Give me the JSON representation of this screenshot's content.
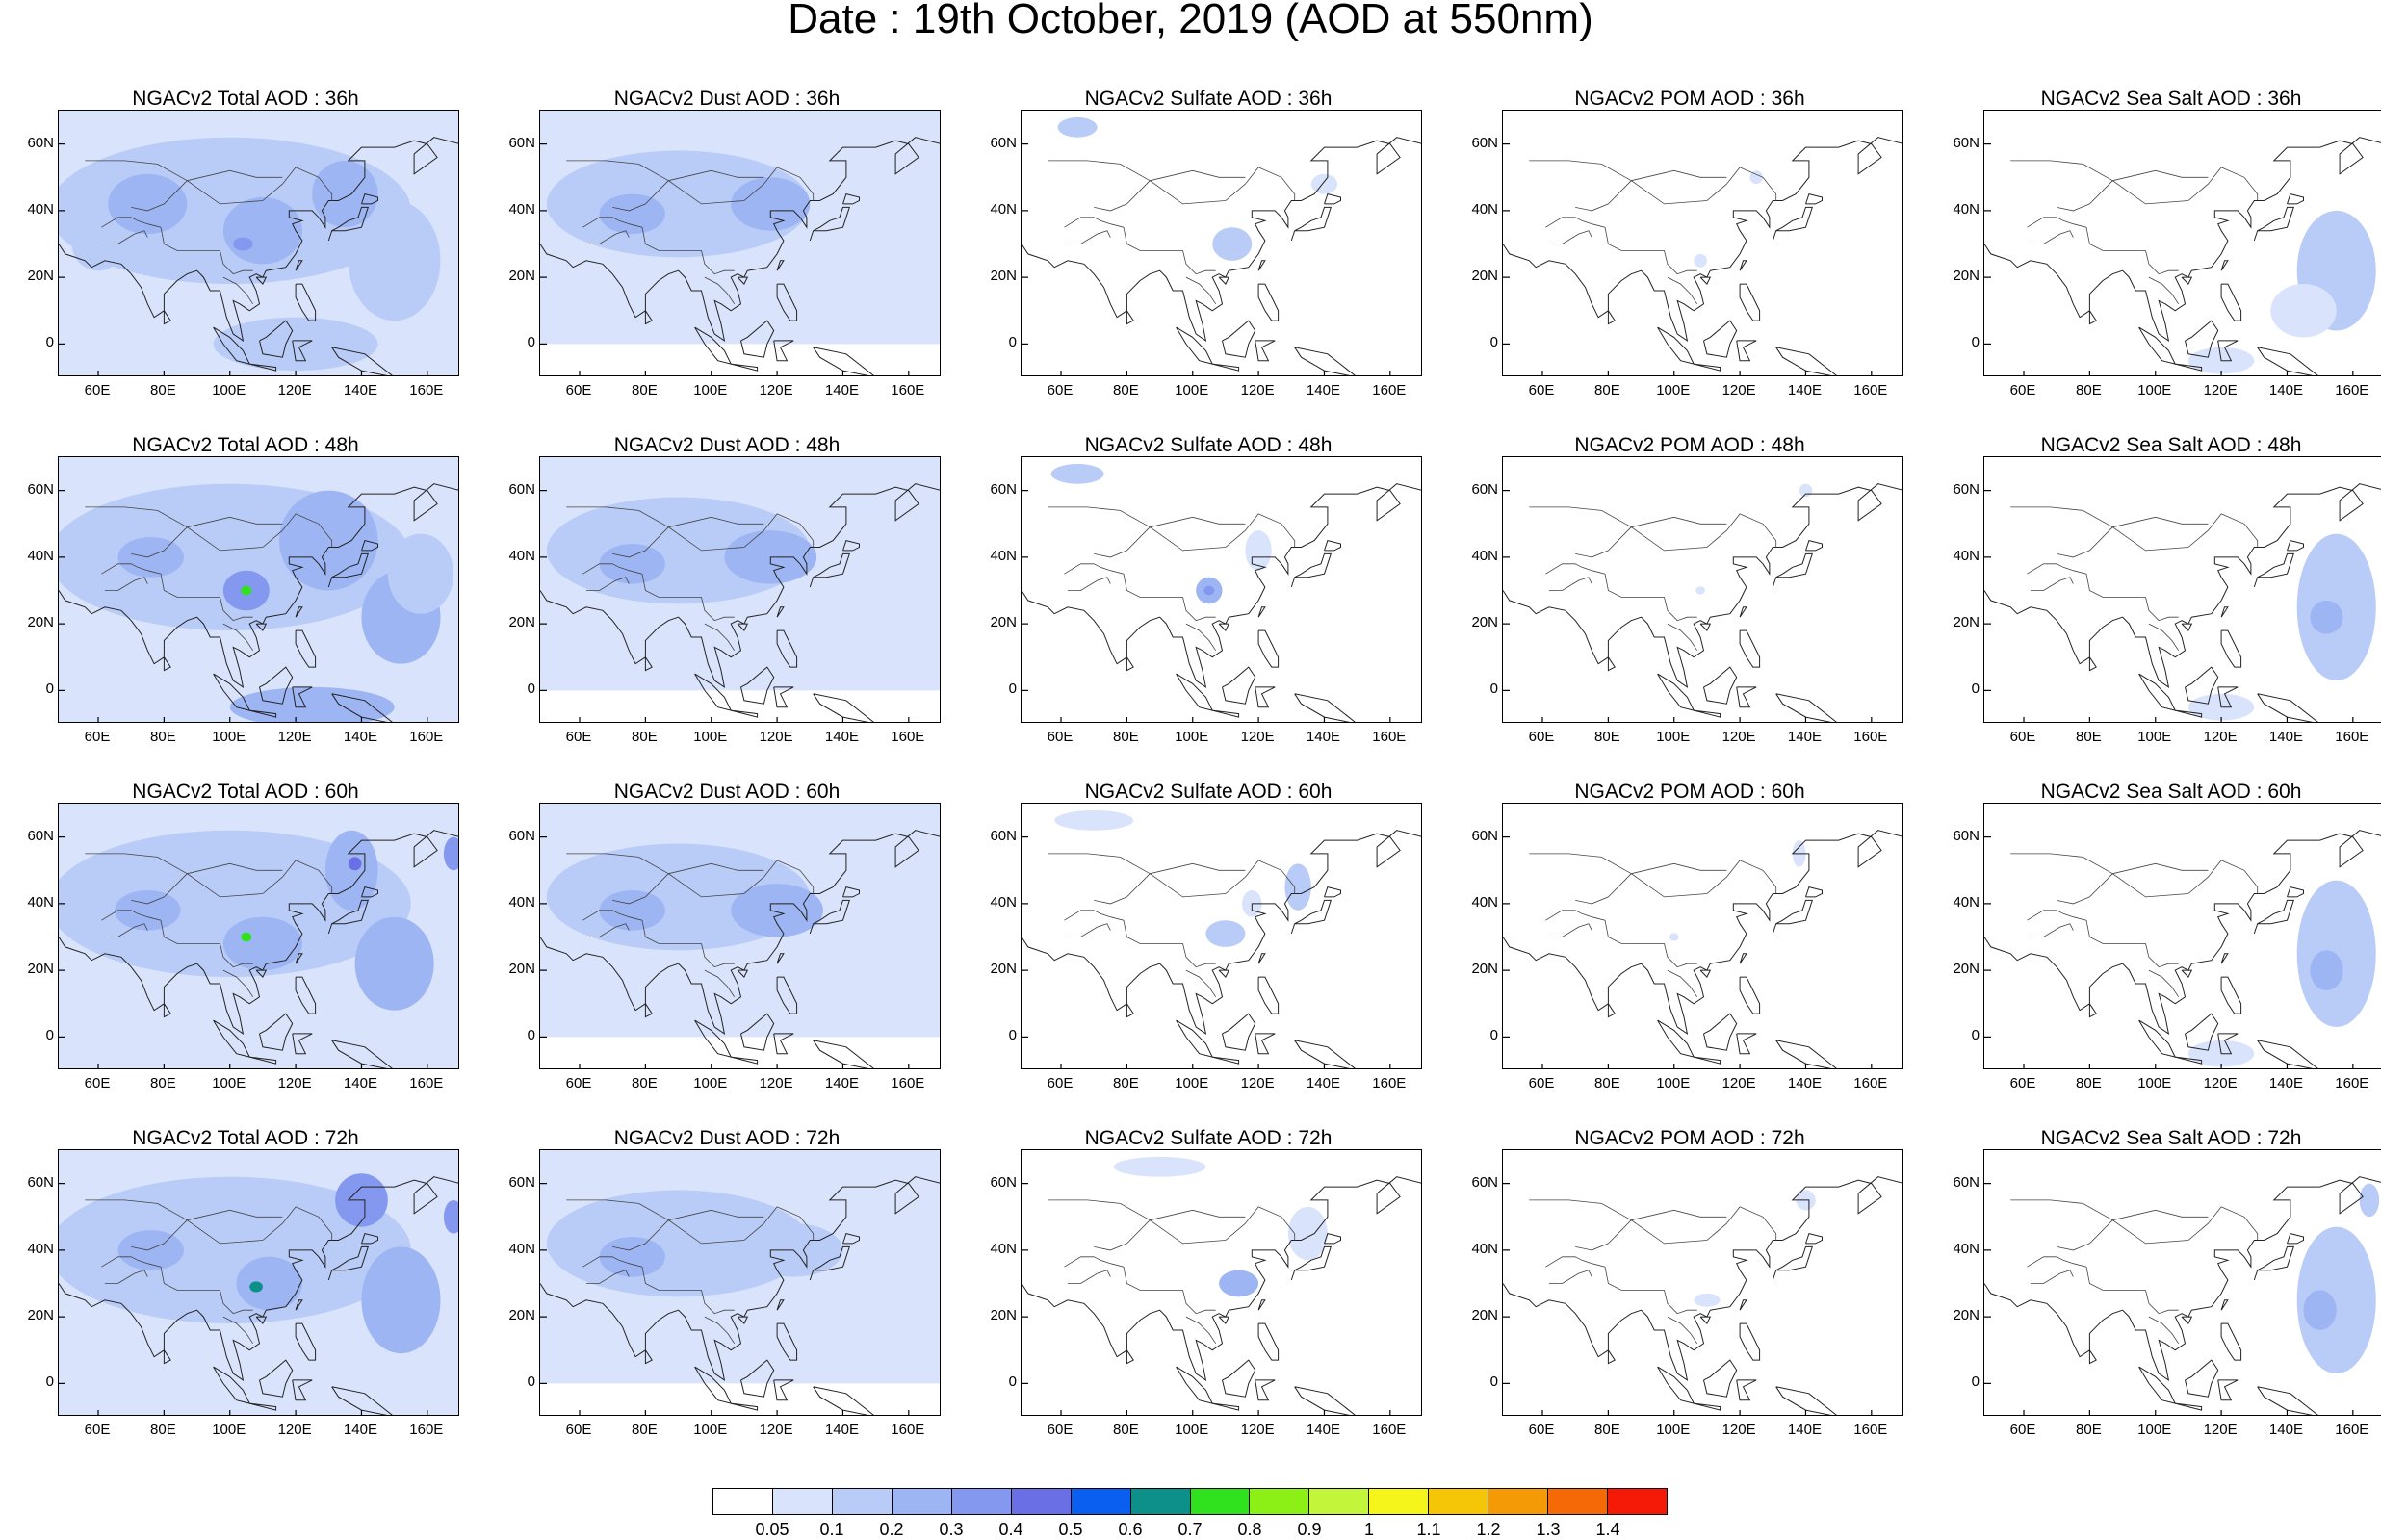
{
  "title": "Date : 19th October, 2019 (AOD at 550nm)",
  "lat_labels": [
    "60N",
    "40N",
    "20N",
    "0"
  ],
  "lon_labels": [
    "60E",
    "80E",
    "100E",
    "120E",
    "140E",
    "160E"
  ],
  "panels": [
    {
      "title": "NGACv2 Total AOD : 36h",
      "species": "total",
      "forecast_hour": 36
    },
    {
      "title": "NGACv2 Dust AOD : 36h",
      "species": "dust",
      "forecast_hour": 36
    },
    {
      "title": "NGACv2 Sulfate AOD : 36h",
      "species": "sulfate",
      "forecast_hour": 36
    },
    {
      "title": "NGACv2 POM AOD : 36h",
      "species": "pom",
      "forecast_hour": 36
    },
    {
      "title": "NGACv2 Sea Salt AOD : 36h",
      "species": "seasalt",
      "forecast_hour": 36
    },
    {
      "title": "NGACv2 Total AOD : 48h",
      "species": "total",
      "forecast_hour": 48
    },
    {
      "title": "NGACv2 Dust AOD : 48h",
      "species": "dust",
      "forecast_hour": 48
    },
    {
      "title": "NGACv2 Sulfate AOD : 48h",
      "species": "sulfate",
      "forecast_hour": 48
    },
    {
      "title": "NGACv2 POM AOD : 48h",
      "species": "pom",
      "forecast_hour": 48
    },
    {
      "title": "NGACv2 Sea Salt AOD : 48h",
      "species": "seasalt",
      "forecast_hour": 48
    },
    {
      "title": "NGACv2 Total AOD : 60h",
      "species": "total",
      "forecast_hour": 60
    },
    {
      "title": "NGACv2 Dust AOD : 60h",
      "species": "dust",
      "forecast_hour": 60
    },
    {
      "title": "NGACv2 Sulfate AOD : 60h",
      "species": "sulfate",
      "forecast_hour": 60
    },
    {
      "title": "NGACv2 POM AOD : 60h",
      "species": "pom",
      "forecast_hour": 60
    },
    {
      "title": "NGACv2 Sea Salt AOD : 60h",
      "species": "seasalt",
      "forecast_hour": 60
    },
    {
      "title": "NGACv2 Total AOD : 72h",
      "species": "total",
      "forecast_hour": 72
    },
    {
      "title": "NGACv2 Dust AOD : 72h",
      "species": "dust",
      "forecast_hour": 72
    },
    {
      "title": "NGACv2 Sulfate AOD : 72h",
      "species": "sulfate",
      "forecast_hour": 72
    },
    {
      "title": "NGACv2 POM AOD : 72h",
      "species": "pom",
      "forecast_hour": 72
    },
    {
      "title": "NGACv2 Sea Salt  AOD : 72h",
      "species": "seasalt",
      "forecast_hour": 72
    }
  ],
  "colorbar": {
    "labels": [
      "0.05",
      "0.1",
      "0.2",
      "0.3",
      "0.4",
      "0.5",
      "0.6",
      "0.7",
      "0.8",
      "0.9",
      "1",
      "1.1",
      "1.2",
      "1.3",
      "1.4"
    ],
    "colors": [
      "#ffffff",
      "#d9e3fb",
      "#b9cbf7",
      "#9db5f3",
      "#8598ef",
      "#6b6fe6",
      "#0a5ff0",
      "#0d8f8a",
      "#30e11d",
      "#8cf016",
      "#c3f53a",
      "#f5f51b",
      "#f5c507",
      "#f59a07",
      "#f56a07",
      "#f51a07"
    ]
  }
}
